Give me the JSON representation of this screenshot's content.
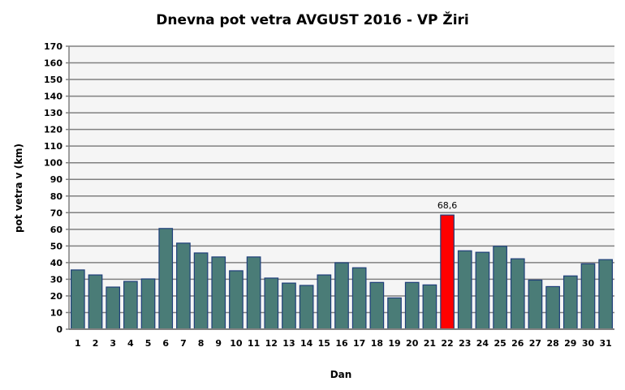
{
  "chart_data": {
    "type": "bar",
    "title": "Dnevna pot vetra AVGUST 2016 - VP Žiri",
    "xlabel": "Dan",
    "ylabel": "pot vetra  v (km)",
    "ylim": [
      0,
      170
    ],
    "ytick_step": 10,
    "grid": true,
    "categories": [
      "1",
      "2",
      "3",
      "4",
      "5",
      "6",
      "7",
      "8",
      "9",
      "10",
      "11",
      "12",
      "13",
      "14",
      "15",
      "16",
      "17",
      "18",
      "19",
      "20",
      "21",
      "22",
      "23",
      "24",
      "25",
      "26",
      "27",
      "28",
      "29",
      "30",
      "31"
    ],
    "values": [
      35.6,
      32.6,
      25.3,
      28.7,
      30.2,
      60.5,
      51.7,
      45.8,
      43.4,
      35.1,
      43.4,
      30.7,
      27.7,
      26.3,
      32.6,
      39.9,
      36.9,
      28.1,
      18.8,
      28.1,
      26.6,
      68.6,
      47.1,
      46.2,
      49.8,
      42.3,
      29.5,
      25.6,
      32.0,
      39.3,
      41.8
    ],
    "highlight_index": 21,
    "highlight_label": "68,6",
    "colors": {
      "bar": "#4a7c77",
      "bar_border": "#1f3f7a",
      "highlight": "#ff0000",
      "plot_bg": "#f5f5f5",
      "grid": "#808080"
    }
  }
}
